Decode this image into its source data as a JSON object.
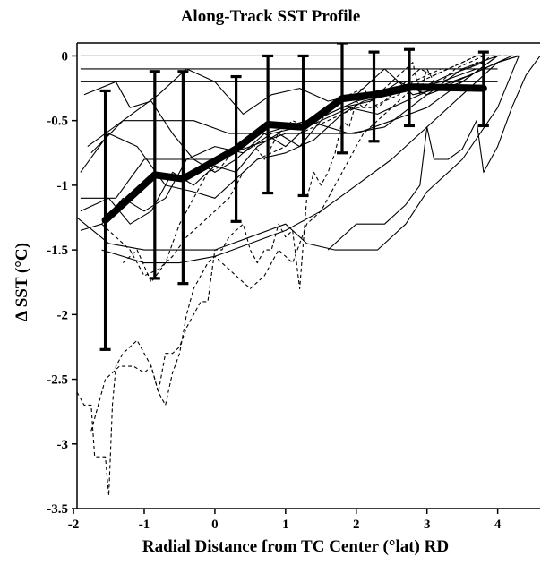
{
  "chart_data": {
    "type": "line",
    "title": "Along-Track SST Profile",
    "xlabel": "Radial Distance from TC Center (°lat) RD",
    "ylabel": "Δ SST (°C)",
    "xlim": [
      -1.95,
      4.6
    ],
    "ylim": [
      -3.5,
      0.1
    ],
    "xticks": [
      -2,
      -1,
      0,
      1,
      2,
      3,
      4
    ],
    "yticks": [
      0,
      -0.5,
      -1,
      -1.5,
      -2,
      -2.5,
      -3,
      -3.5
    ],
    "xtick_labels": [
      "-2",
      "-1",
      "0",
      "1",
      "2",
      "3",
      "4"
    ],
    "ytick_labels": [
      "0",
      "-0.5",
      "-1",
      "-1.5",
      "-2",
      "-2.5",
      "-3",
      "-3.5"
    ],
    "grid": false,
    "legend": "none",
    "colors": {
      "line": "#000000",
      "mean": "#000000"
    },
    "series": [
      {
        "style": "mean",
        "x": [
          -1.55,
          -0.85,
          -0.45,
          0.3,
          0.75,
          1.25,
          1.8,
          2.25,
          2.75,
          3.8
        ],
        "y": [
          -1.27,
          -0.92,
          -0.95,
          -0.72,
          -0.53,
          -0.55,
          -0.33,
          -0.3,
          -0.24,
          -0.25
        ]
      },
      {
        "style": "errorbars",
        "x": [
          -1.55,
          -0.85,
          -0.45,
          0.3,
          0.75,
          1.25,
          1.8,
          2.25,
          2.75,
          3.8
        ],
        "low": [
          -2.27,
          -1.72,
          -1.76,
          -1.28,
          -1.06,
          -1.08,
          -0.75,
          -0.66,
          -0.54,
          -0.54
        ],
        "high": [
          -0.27,
          -0.12,
          -0.12,
          -0.16,
          0.0,
          0.0,
          0.1,
          0.03,
          0.05,
          0.03
        ]
      },
      {
        "style": "solid",
        "x": [
          -1.95,
          -1.5,
          -1.0,
          -0.5,
          0.0,
          0.5,
          1.0,
          1.3,
          1.7,
          2.3,
          2.7,
          3.0,
          3.5,
          4.0,
          4.3
        ],
        "y": [
          -1.25,
          -1.45,
          -1.5,
          -1.5,
          -1.5,
          -1.4,
          -1.3,
          -1.45,
          -1.5,
          -1.5,
          -1.3,
          -1.05,
          -0.8,
          -0.4,
          0.0
        ]
      },
      {
        "style": "solid",
        "x": [
          -1.6,
          -1.0,
          -0.5,
          0.0,
          0.5,
          1.0,
          1.5,
          2.0,
          2.5,
          3.0,
          3.5,
          4.0,
          4.3
        ],
        "y": [
          -1.5,
          -1.6,
          -1.6,
          -1.55,
          -1.45,
          -1.35,
          -1.2,
          -1.0,
          -0.8,
          -0.55,
          -0.3,
          -0.05,
          0.0
        ]
      },
      {
        "style": "solid",
        "x": [
          1.6,
          2.0,
          2.4,
          2.7,
          2.9,
          3.0,
          3.1,
          3.3,
          3.5,
          3.7,
          3.8,
          4.0,
          4.2,
          4.4,
          4.6
        ],
        "y": [
          -1.5,
          -1.3,
          -1.3,
          -1.15,
          -1.0,
          -0.55,
          -0.8,
          -0.8,
          -0.72,
          -0.5,
          -0.9,
          -0.7,
          -0.4,
          -0.15,
          0.0
        ]
      },
      {
        "style": "solid",
        "x": [
          -1.9,
          -1.0,
          0.0,
          1.0,
          2.0,
          3.0,
          4.0
        ],
        "y": [
          0.0,
          0.0,
          0.0,
          0.0,
          0.0,
          0.0,
          0.0
        ]
      },
      {
        "style": "solid",
        "x": [
          -1.9,
          -1.0,
          0.0,
          1.0,
          2.0,
          3.0,
          4.0
        ],
        "y": [
          -0.1,
          -0.1,
          -0.1,
          -0.1,
          -0.1,
          -0.1,
          -0.1
        ]
      },
      {
        "style": "solid",
        "x": [
          -1.9,
          -1.0,
          0.0,
          1.0,
          2.0,
          3.0,
          4.0
        ],
        "y": [
          -0.2,
          -0.2,
          -0.2,
          -0.2,
          -0.2,
          -0.2,
          -0.2
        ]
      },
      {
        "style": "solid",
        "x": [
          -1.8,
          -1.3,
          -0.8,
          -0.4,
          0.0,
          0.4,
          0.8,
          1.2,
          1.6,
          2.0,
          2.4,
          2.8,
          3.2,
          3.6,
          4.0,
          4.3
        ],
        "y": [
          -0.7,
          -0.5,
          -0.3,
          -0.1,
          -0.2,
          -0.45,
          -0.3,
          -0.25,
          -0.35,
          -0.3,
          -0.1,
          -0.3,
          -0.25,
          -0.15,
          -0.05,
          0.0
        ]
      },
      {
        "style": "solid",
        "x": [
          -1.75,
          -1.3,
          -0.8,
          -0.3,
          0.2,
          0.7,
          1.3,
          1.9,
          2.4,
          3.0,
          3.5,
          4.0
        ],
        "y": [
          -0.75,
          -0.5,
          -0.5,
          -0.5,
          -0.6,
          -0.6,
          -0.5,
          -0.6,
          -0.55,
          -0.3,
          -0.2,
          0.0
        ]
      },
      {
        "style": "solid",
        "x": [
          -1.9,
          -1.4,
          -1.0,
          -0.5,
          0.0,
          0.5,
          1.0,
          1.5,
          2.0,
          2.5,
          3.0,
          3.5,
          4.0
        ],
        "y": [
          -1.1,
          -1.1,
          -0.8,
          -0.8,
          -0.8,
          -0.7,
          -0.6,
          -0.6,
          -0.6,
          -0.5,
          -0.4,
          -0.2,
          0.0
        ]
      },
      {
        "style": "solid",
        "x": [
          -1.85,
          -1.4,
          -1.2,
          -0.9,
          -0.6,
          -0.3,
          0.0,
          0.3,
          0.7,
          1.0,
          1.4,
          1.8,
          2.2,
          2.6,
          3.0,
          3.5,
          4.0
        ],
        "y": [
          -0.3,
          -0.2,
          -0.4,
          -0.35,
          -0.6,
          -0.8,
          -0.9,
          -0.8,
          -0.6,
          -0.7,
          -0.5,
          -0.4,
          -0.35,
          -0.2,
          -0.3,
          -0.1,
          0.0
        ]
      },
      {
        "style": "solid",
        "x": [
          -1.9,
          -1.5,
          -1.1,
          -0.7,
          -0.3,
          0.0,
          0.3,
          0.6,
          1.0,
          1.4,
          1.8,
          2.1,
          2.5,
          2.9,
          3.3,
          3.8
        ],
        "y": [
          -0.9,
          -0.6,
          -0.7,
          -1.0,
          -1.05,
          -1.1,
          -0.95,
          -0.8,
          -0.75,
          -0.65,
          -0.45,
          -0.35,
          -0.3,
          -0.25,
          -0.15,
          -0.05
        ]
      },
      {
        "style": "solid",
        "x": [
          -1.9,
          -1.5,
          -1.2,
          -0.9,
          -0.6,
          -0.3,
          0.0,
          0.3,
          0.6,
          0.9,
          1.2,
          1.5,
          1.9,
          2.3,
          2.7,
          3.1,
          3.6,
          4.2
        ],
        "y": [
          -1.2,
          -1.1,
          -1.3,
          -1.2,
          -0.9,
          -1.0,
          -0.85,
          -0.9,
          -0.7,
          -0.6,
          -0.7,
          -0.5,
          -0.4,
          -0.45,
          -0.35,
          -0.25,
          -0.15,
          0.0
        ]
      },
      {
        "style": "solid",
        "x": [
          -1.9,
          -1.6,
          -1.3,
          -1.0,
          -0.7,
          -0.4,
          0.0,
          0.4,
          0.8,
          1.2,
          1.6,
          2.0,
          2.4,
          2.8,
          3.2,
          3.7
        ],
        "y": [
          -1.35,
          -1.3,
          -1.1,
          -1.2,
          -1.1,
          -0.8,
          -0.7,
          -0.75,
          -0.6,
          -0.55,
          -0.45,
          -0.35,
          -0.3,
          -0.25,
          -0.2,
          -0.1
        ]
      },
      {
        "style": "dashed",
        "x": [
          -1.95,
          -1.85,
          -1.75,
          -1.7,
          -1.65,
          -1.6,
          -1.55,
          -1.5,
          -1.45,
          -1.4,
          -1.3,
          -1.2,
          -1.1,
          -1.0,
          -0.9,
          -0.8,
          -0.7,
          -0.6,
          -0.5,
          -0.4,
          -0.3,
          -0.2,
          -0.1,
          0.0,
          0.1,
          0.2,
          0.3,
          0.4,
          0.5,
          0.6,
          0.7,
          0.8,
          0.9,
          1.0,
          1.1,
          1.2,
          1.3,
          1.4,
          1.5,
          1.6,
          1.7,
          1.8,
          1.9,
          2.0,
          2.1,
          2.2,
          2.3,
          2.4,
          2.5,
          2.6,
          2.7,
          2.8,
          2.9,
          3.0,
          3.1,
          3.2,
          3.3,
          3.4,
          3.5,
          3.6,
          3.7,
          3.8,
          3.9,
          4.0,
          4.1,
          4.2,
          4.3
        ],
        "y": [
          -2.6,
          -2.7,
          -2.7,
          -3.1,
          -3.1,
          -3.1,
          -3.1,
          -3.4,
          -2.7,
          -2.4,
          -2.3,
          -2.25,
          -2.2,
          -2.3,
          -2.4,
          -2.6,
          -2.3,
          -2.3,
          -2.25,
          -2.1,
          -2.0,
          -1.9,
          -1.9,
          -1.5,
          -1.5,
          -1.4,
          -1.35,
          -1.3,
          -1.5,
          -1.6,
          -1.5,
          -1.5,
          -1.3,
          -1.4,
          -1.35,
          -1.8,
          -1.1,
          -0.9,
          -1.0,
          -0.9,
          -0.75,
          -0.5,
          -0.55,
          -0.35,
          -0.4,
          -0.35,
          -0.3,
          -0.25,
          -0.2,
          -0.15,
          -0.1,
          -0.05,
          -0.3,
          -0.1,
          -0.2,
          -0.2,
          -0.15,
          -0.1,
          -0.1,
          -0.1,
          -0.05,
          -0.05,
          0.0,
          0.0,
          0.0,
          0.0,
          0.0
        ]
      },
      {
        "style": "dashed",
        "x": [
          -1.75,
          -1.55,
          -1.35,
          -1.15,
          -1.0,
          -0.9,
          -0.8,
          -0.7,
          -0.6,
          -0.5,
          -0.4,
          -0.3,
          -0.2,
          -0.1,
          0.0,
          0.1,
          0.3,
          0.5,
          0.7,
          0.9,
          1.1,
          1.3,
          1.5,
          1.7,
          1.9,
          2.1,
          2.3,
          2.5,
          2.7,
          2.9,
          3.1,
          3.3,
          3.5,
          3.7,
          3.9,
          4.1,
          4.3
        ],
        "y": [
          -2.9,
          -2.5,
          -2.4,
          -2.4,
          -2.45,
          -2.4,
          -2.6,
          -2.7,
          -2.45,
          -2.3,
          -2.0,
          -1.8,
          -1.7,
          -1.6,
          -1.55,
          -1.6,
          -1.7,
          -1.8,
          -1.7,
          -1.5,
          -1.6,
          -1.3,
          -1.2,
          -1.0,
          -0.8,
          -0.6,
          -0.5,
          -0.4,
          -0.3,
          -0.2,
          -0.15,
          -0.1,
          -0.05,
          0.0,
          0.0,
          0.0,
          0.0
        ]
      },
      {
        "style": "dashed",
        "x": [
          -1.6,
          -1.4,
          -1.2,
          -1.0,
          -0.8,
          -0.6,
          -0.4,
          -0.2,
          0.0,
          0.2,
          0.4,
          0.6,
          0.8,
          1.0,
          1.2,
          1.4,
          1.6,
          1.8,
          2.0,
          2.2,
          2.4,
          2.6,
          2.8,
          3.0,
          3.2,
          3.4,
          3.6,
          3.8,
          4.0,
          4.2
        ],
        "y": [
          -1.3,
          -1.4,
          -1.5,
          -1.7,
          -1.65,
          -1.55,
          -1.4,
          -1.3,
          -1.2,
          -1.1,
          -0.9,
          -0.8,
          -0.75,
          -0.7,
          -0.6,
          -0.55,
          -0.5,
          -0.45,
          -0.4,
          -0.4,
          -0.35,
          -0.3,
          -0.2,
          -0.15,
          -0.1,
          -0.1,
          -0.05,
          0.0,
          0.0,
          0.0
        ]
      },
      {
        "style": "dashed",
        "x": [
          -1.3,
          -1.1,
          -0.9,
          -0.7,
          -0.5,
          -0.3,
          -0.1,
          0.1,
          0.3,
          0.5,
          0.7,
          0.9,
          1.1,
          1.3,
          1.5,
          1.7,
          1.9,
          2.1,
          2.3,
          2.5,
          2.7,
          2.9,
          3.1,
          3.3,
          3.5,
          3.7,
          3.9,
          4.1
        ],
        "y": [
          -1.6,
          -1.5,
          -1.75,
          -1.6,
          -1.3,
          -1.1,
          -0.9,
          -0.85,
          -0.7,
          -0.65,
          -0.8,
          -0.6,
          -0.5,
          -0.55,
          -0.5,
          -0.35,
          -0.3,
          -0.25,
          -0.4,
          -0.3,
          -0.2,
          -0.1,
          -0.15,
          -0.1,
          -0.05,
          0.0,
          0.0,
          0.0
        ]
      }
    ]
  }
}
